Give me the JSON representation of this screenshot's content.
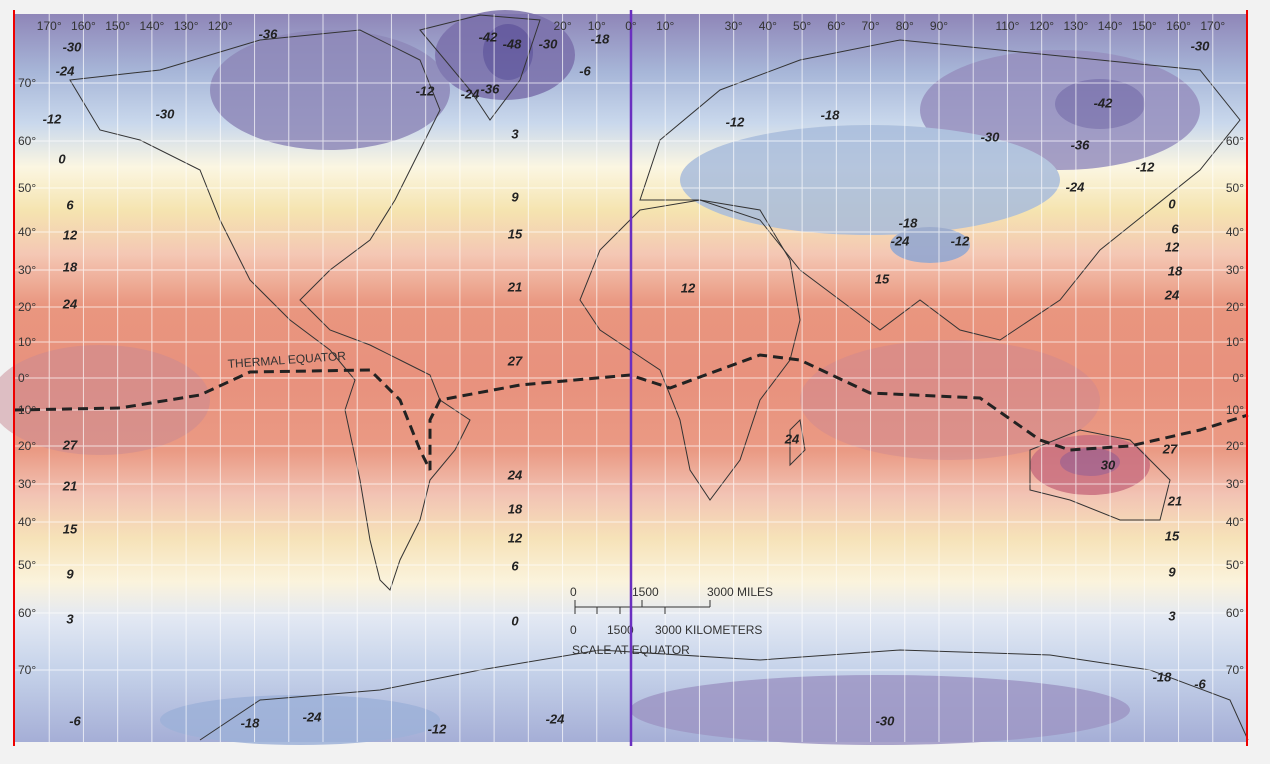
{
  "longitude_labels": {
    "west": [
      "170°",
      "160°",
      "150°",
      "140°",
      "130°",
      "120°",
      "20°",
      "10°",
      "0°"
    ],
    "east": [
      "10°",
      "30°",
      "40°",
      "50°",
      "60°",
      "70°",
      "80°",
      "90°",
      "110°",
      "120°",
      "130°",
      "140°",
      "150°",
      "160°",
      "170°"
    ]
  },
  "latitude_labels_left": [
    "70°",
    "60°",
    "50°",
    "40°",
    "30°",
    "20°",
    "10°",
    "0°",
    "10°",
    "20°",
    "30°",
    "40°",
    "50°",
    "60°",
    "70°"
  ],
  "latitude_labels_right": [
    "60°",
    "50°",
    "40°",
    "30°",
    "20°",
    "10°",
    "0°",
    "10°",
    "20°",
    "30°",
    "40°",
    "50°",
    "60°",
    "70°"
  ],
  "isotherm_labels": [
    "-30",
    "-24",
    "-12",
    "0",
    "6",
    "12",
    "18",
    "24",
    "27",
    "21",
    "15",
    "9",
    "3",
    "-6",
    "-30",
    "-36",
    "-12",
    "-24",
    "-42",
    "-48",
    "-36",
    "-30",
    "-18",
    "-6",
    "3",
    "9",
    "15",
    "21",
    "27",
    "24",
    "18",
    "12",
    "6",
    "0",
    "-18",
    "-24",
    "-12",
    "-24",
    "-12",
    "-18",
    "-42",
    "-30",
    "-36",
    "-24",
    "-12",
    "-30",
    "0",
    "6",
    "12",
    "18",
    "24",
    "-18",
    "-24",
    "-12",
    "15",
    "12",
    "24",
    "30",
    "27",
    "21",
    "15",
    "9",
    "3",
    "-18",
    "-6",
    "-30"
  ],
  "thermal_equator_label": "THERMAL EQUATOR",
  "scale": {
    "miles": [
      "0",
      "1500",
      "3000 MILES"
    ],
    "kilometers": [
      "0",
      "1500",
      "3000 KILOMETERS"
    ],
    "caption": "SCALE AT EQUATOR"
  }
}
